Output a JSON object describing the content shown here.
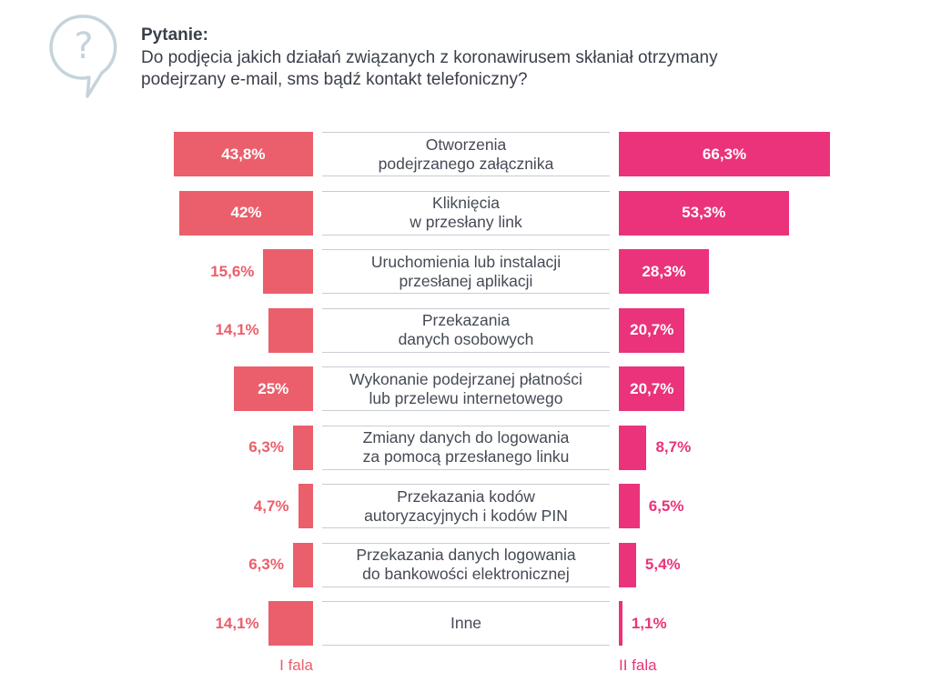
{
  "header": {
    "icon": "?",
    "label": "Pytanie:"
  },
  "chart_data": {
    "type": "bar",
    "title": "Do podjęcia jakich działań związanych z koronawirusem skłaniał otrzymany\npodejrzany e-mail, sms bądź kontakt telefoniczny?",
    "categories": [
      "Otworzenia\npodejrzanego załącznika",
      "Kliknięcia\nw przesłany link",
      "Uruchomienia lub instalacji\nprzesłanej aplikacji",
      "Przekazania\ndanych osobowych",
      "Wykonanie podejrzanej płatności\nlub przelewu internetowego",
      "Zmiany danych do logowania\nza pomocą przesłanego linku",
      "Przekazania kodów\nautoryzacyjnych i kodów PIN",
      "Przekazania danych logowania\ndo bankowości elektronicznej",
      "Inne"
    ],
    "series": [
      {
        "name": "I fala",
        "color": "#ea5f6b",
        "values": [
          43.8,
          42,
          15.6,
          14.1,
          25,
          6.3,
          4.7,
          6.3,
          14.1
        ],
        "value_labels": [
          "43,8%",
          "42%",
          "15,6%",
          "14,1%",
          "25%",
          "6,3%",
          "4,7%",
          "6,3%",
          "14,1%"
        ]
      },
      {
        "name": "II fala",
        "color": "#ea337a",
        "values": [
          66.3,
          53.3,
          28.3,
          20.7,
          20.7,
          8.7,
          6.5,
          5.4,
          1.1
        ],
        "value_labels": [
          "66,3%",
          "53,3%",
          "28,3%",
          "20,7%",
          "20,7%",
          "8,7%",
          "6,5%",
          "5,4%",
          "1,1%"
        ]
      }
    ]
  }
}
